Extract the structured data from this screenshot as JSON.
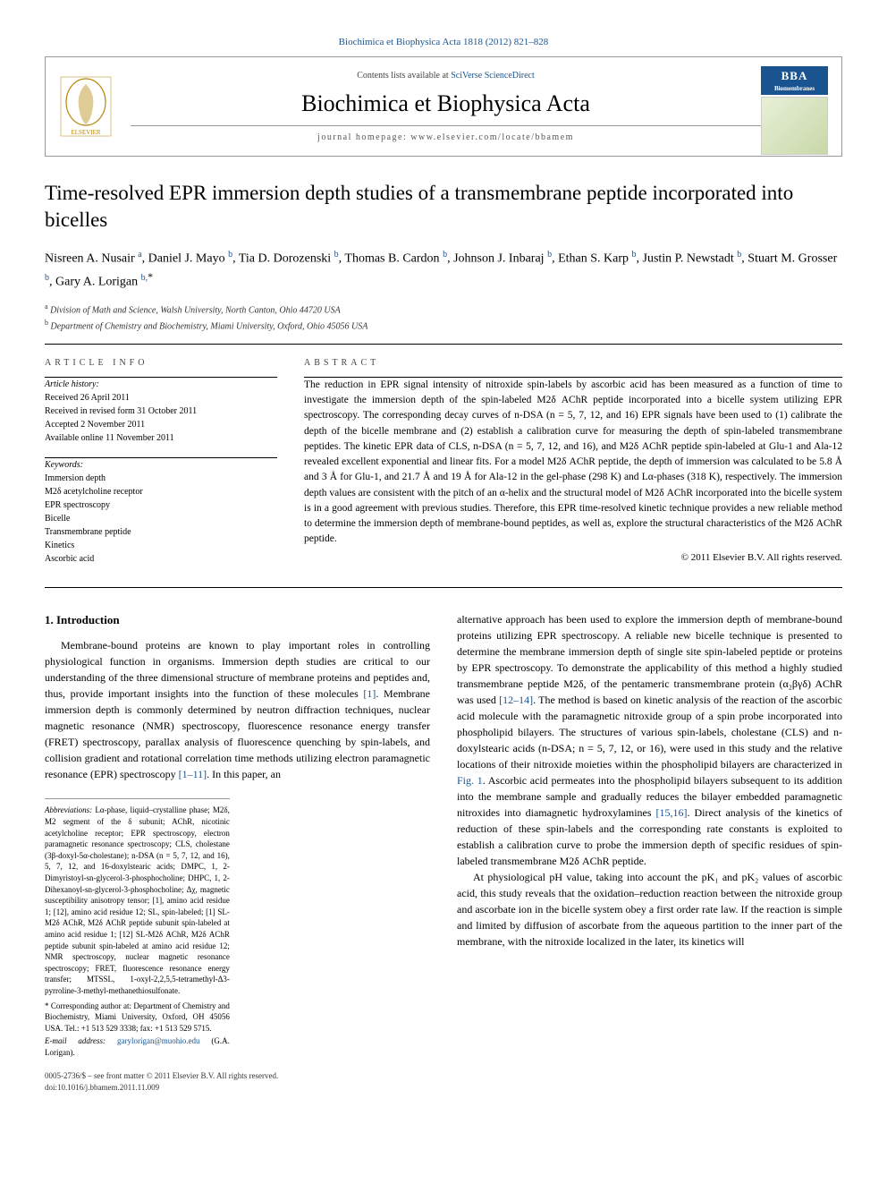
{
  "journal_ref": "Biochimica et Biophysica Acta 1818 (2012) 821–828",
  "header": {
    "contents_prefix": "Contents lists available at ",
    "contents_link": "SciVerse ScienceDirect",
    "journal_name": "Biochimica et Biophysica Acta",
    "homepage": "journal homepage: www.elsevier.com/locate/bbamem",
    "bba_badge_top": "BBA",
    "bba_badge_bottom": "Biomembranes"
  },
  "title": "Time-resolved EPR immersion depth studies of a transmembrane peptide incorporated into bicelles",
  "authors_html": "Nisreen A. Nusair <sup class='sup'>a</sup>, Daniel J. Mayo <sup class='sup'>b</sup>, Tia D. Dorozenski <sup class='sup'>b</sup>, Thomas B. Cardon <sup class='sup'>b</sup>, Johnson J. Inbaraj <sup class='sup'>b</sup>, Ethan S. Karp <sup class='sup'>b</sup>, Justin P. Newstadt <sup class='sup'>b</sup>, Stuart M. Grosser <sup class='sup'>b</sup>, Gary A. Lorigan <sup class='sup'>b,</sup><sup class='corr'>*</sup>",
  "affiliations": [
    {
      "key": "a",
      "text": "Division of Math and Science, Walsh University, North Canton, Ohio 44720 USA"
    },
    {
      "key": "b",
      "text": "Department of Chemistry and Biochemistry, Miami University, Oxford, Ohio 45056 USA"
    }
  ],
  "article_info": {
    "label": "ARTICLE INFO",
    "history_label": "Article history:",
    "history": [
      "Received 26 April 2011",
      "Received in revised form 31 October 2011",
      "Accepted 2 November 2011",
      "Available online 11 November 2011"
    ],
    "keywords_label": "Keywords:",
    "keywords": [
      "Immersion depth",
      "M2δ acetylcholine receptor",
      "EPR spectroscopy",
      "Bicelle",
      "Transmembrane peptide",
      "Kinetics",
      "Ascorbic acid"
    ]
  },
  "abstract": {
    "label": "ABSTRACT",
    "text": "The reduction in EPR signal intensity of nitroxide spin-labels by ascorbic acid has been measured as a function of time to investigate the immersion depth of the spin-labeled M2δ AChR peptide incorporated into a bicelle system utilizing EPR spectroscopy. The corresponding decay curves of n-DSA (n = 5, 7, 12, and 16) EPR signals have been used to (1) calibrate the depth of the bicelle membrane and (2) establish a calibration curve for measuring the depth of spin-labeled transmembrane peptides. The kinetic EPR data of CLS, n-DSA (n = 5, 7, 12, and 16), and M2δ AChR peptide spin-labeled at Glu-1 and Ala-12 revealed excellent exponential and linear fits. For a model M2δ AChR peptide, the depth of immersion was calculated to be 5.8 Å and 3 Å for Glu-1, and 21.7 Å and 19 Å for Ala-12 in the gel-phase (298 K) and Lα-phases (318 K), respectively. The immersion depth values are consistent with the pitch of an α-helix and the structural model of M2δ AChR incorporated into the bicelle system is in a good agreement with previous studies. Therefore, this EPR time-resolved kinetic technique provides a new reliable method to determine the immersion depth of membrane-bound peptides, as well as, explore the structural characteristics of the M2δ AChR peptide.",
    "copyright": "© 2011 Elsevier B.V. All rights reserved."
  },
  "body": {
    "heading": "1. Introduction",
    "para1": "Membrane-bound proteins are known to play important roles in controlling physiological function in organisms. Immersion depth studies are critical to our understanding of the three dimensional structure of membrane proteins and peptides and, thus, provide important insights into the function of these molecules [1]. Membrane immersion depth is commonly determined by neutron diffraction techniques, nuclear magnetic resonance (NMR) spectroscopy, fluorescence resonance energy transfer (FRET) spectroscopy, parallax analysis of fluorescence quenching by spin-labels, and collision gradient and rotational correlation time methods utilizing electron paramagnetic resonance (EPR) spectroscopy [1–11]. In this paper, an",
    "para2": "alternative approach has been used to explore the immersion depth of membrane-bound proteins utilizing EPR spectroscopy. A reliable new bicelle technique is presented to determine the membrane immersion depth of single site spin-labeled peptide or proteins by EPR spectroscopy. To demonstrate the applicability of this method a highly studied transmembrane peptide M2δ, of the pentameric transmembrane protein (α₂βγδ) AChR was used [12–14]. The method is based on kinetic analysis of the reaction of the ascorbic acid molecule with the paramagnetic nitroxide group of a spin probe incorporated into phospholipid bilayers. The structures of various spin-labels, cholestane (CLS) and n-doxylstearic acids (n-DSA; n = 5, 7, 12, or 16), were used in this study and the relative locations of their nitroxide moieties within the phospholipid bilayers are characterized in Fig. 1. Ascorbic acid permeates into the phospholipid bilayers subsequent to its addition into the membrane sample and gradually reduces the bilayer embedded paramagnetic nitroxides into diamagnetic hydroxylamines [15,16]. Direct analysis of the kinetics of reduction of these spin-labels and the corresponding rate constants is exploited to establish a calibration curve to probe the immersion depth of specific residues of spin-labeled transmembrane M2δ AChR peptide.",
    "para3": "At physiological pH value, taking into account the pK₁ and pK₂ values of ascorbic acid, this study reveals that the oxidation–reduction reaction between the nitroxide group and ascorbate ion in the bicelle system obey a first order rate law. If the reaction is simple and limited by diffusion of ascorbate from the aqueous partition to the inner part of the membrane, with the nitroxide localized in the later, its kinetics will",
    "cite1": "[1]",
    "cite2": "[1–11]",
    "cite3": "[12–14]",
    "cite4": "Fig. 1",
    "cite5": "[15,16]"
  },
  "footnotes": {
    "abbrev_label": "Abbreviations:",
    "abbrev_text": " Lα-phase, liquid–crystalline phase; M2δ, M2 segment of the δ subunit; AChR, nicotinic acetylcholine receptor; EPR spectroscopy, electron paramagnetic resonance spectroscopy; CLS, cholestane (3β-doxyl-5α-cholestane); n-DSA (n = 5, 7, 12, and 16), 5, 7, 12, and 16-doxylstearic acids; DMPC, 1, 2-Dimyristoyl-sn-glycerol-3-phosphocholine; DHPC, 1, 2-Dihexanoyl-sn-glycerol-3-phosphocholine; Δχ, magnetic susceptibility anisotropy tensor; [1], amino acid residue 1; [12], amino acid residue 12; SL, spin-labeled; [1] SL-M2δ AChR, M2δ AChR peptide subunit spin-labeled at amino acid residue 1; [12] SL-M2δ AChR, M2δ AChR peptide subunit spin-labeled at amino acid residue 12; NMR spectroscopy, nuclear magnetic resonance spectroscopy; FRET, fluorescence resonance energy transfer; MTSSL, 1-oxyl-2,2,5,5-tetramethyl-Δ3-pyrroline-3-methyl-methanethiosulfonate.",
    "corr_text": "* Corresponding author at: Department of Chemistry and Biochemistry, Miami University, Oxford, OH 45056 USA. Tel.: +1 513 529 3338; fax: +1 513 529 5715.",
    "email_label": "E-mail address:",
    "email": "garylorigan@muohio.edu",
    "email_who": " (G.A. Lorigan)."
  },
  "footer": {
    "issn": "0005-2736/$ – see front matter © 2011 Elsevier B.V. All rights reserved.",
    "doi": "doi:10.1016/j.bbamem.2011.11.009"
  }
}
